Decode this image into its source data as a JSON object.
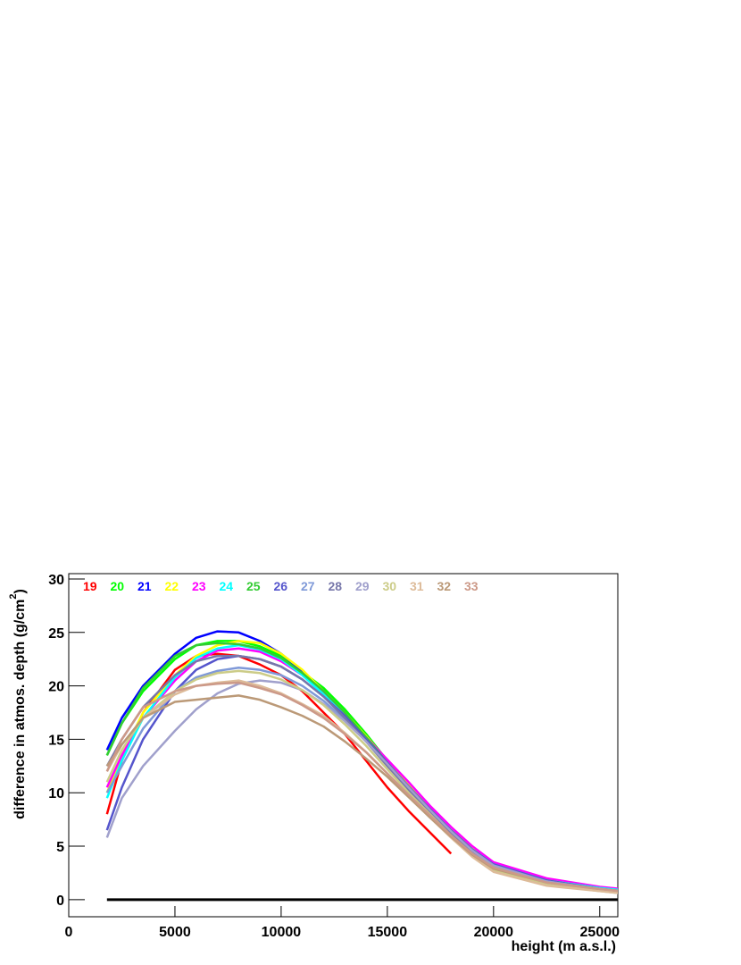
{
  "chart_data": {
    "type": "line",
    "x_label": "height (m a.s.l.)",
    "y_label": {
      "text": "difference in atmos. depth (g/cm",
      "superscript": "2",
      "close": ")"
    },
    "xlim": [
      0,
      25850
    ],
    "ylim": [
      -1.6,
      30.5
    ],
    "xticks": [
      0,
      5000,
      10000,
      15000,
      20000,
      25000
    ],
    "yticks": [
      0,
      5,
      10,
      15,
      20,
      25,
      30
    ],
    "x": [
      1800,
      2500,
      3500,
      5000,
      6000,
      7000,
      8000,
      9000,
      10000,
      11000,
      12000,
      13000,
      14000,
      15000,
      16000,
      17000,
      18000,
      19000,
      20000,
      22500,
      25000,
      26000
    ],
    "baseline": {
      "x": [
        1800,
        25850
      ],
      "values": [
        0,
        0
      ],
      "color": "#000000"
    },
    "series": [
      {
        "name": "19",
        "color": "#ff0000",
        "values": [
          8,
          13,
          17.5,
          21.5,
          22.8,
          23,
          22.8,
          22,
          21,
          19.5,
          17.5,
          15.5,
          13,
          10.5,
          8.3,
          6.3,
          4.3,
          null,
          null,
          null,
          null,
          null
        ]
      },
      {
        "name": "20",
        "color": "#00ff00",
        "values": [
          13.5,
          16.5,
          19.5,
          22.5,
          23.8,
          24.2,
          24.2,
          23.7,
          22.8,
          21.3,
          19.8,
          17.8,
          15.5,
          13,
          10.5,
          8.3,
          6.3,
          4.5,
          3.2,
          1.8,
          1.0,
          0.8
        ]
      },
      {
        "name": "21",
        "color": "#0000ff",
        "values": [
          14,
          17,
          20,
          23,
          24.5,
          25.1,
          25.0,
          24.2,
          23,
          21.4,
          19.5,
          17.3,
          15,
          12.7,
          10.3,
          8.2,
          6.3,
          4.6,
          3.3,
          1.8,
          1.1,
          0.9
        ]
      },
      {
        "name": "22",
        "color": "#ffff00",
        "values": [
          10,
          13.5,
          17.5,
          21,
          22.8,
          23.8,
          24.2,
          24,
          23,
          21.5,
          19.5,
          17.5,
          15.3,
          13,
          10.7,
          8.5,
          6.5,
          4.8,
          3.4,
          1.9,
          1.1,
          0.9
        ]
      },
      {
        "name": "23",
        "color": "#ff00ff",
        "values": [
          10.5,
          13.5,
          17,
          20.5,
          22.3,
          23.3,
          23.5,
          23.2,
          22.3,
          21,
          19.3,
          17.3,
          15.2,
          13.1,
          11,
          8.8,
          6.8,
          5,
          3.5,
          2.0,
          1.2,
          1.0
        ]
      },
      {
        "name": "24",
        "color": "#00ffff",
        "values": [
          9.5,
          13,
          17,
          20.8,
          22.6,
          23.5,
          23.8,
          23.4,
          22.5,
          21,
          19.2,
          17.2,
          15,
          12.8,
          10.5,
          8.4,
          6.4,
          4.7,
          3.3,
          1.8,
          1.1,
          0.9
        ]
      },
      {
        "name": "25",
        "color": "#33cc33",
        "values": [
          13.5,
          16.5,
          19.8,
          22.8,
          23.8,
          24,
          23.9,
          23.5,
          22.6,
          21.2,
          19.5,
          17.5,
          15.2,
          12.8,
          10.5,
          8.3,
          6.4,
          4.6,
          3.2,
          1.8,
          1.0,
          0.8
        ]
      },
      {
        "name": "26",
        "color": "#5555cc",
        "values": [
          6.5,
          10.5,
          15,
          19.5,
          21.5,
          22.5,
          22.8,
          22.5,
          21.8,
          20.6,
          19,
          17.2,
          15,
          12.8,
          10.6,
          8.5,
          6.5,
          4.7,
          3.3,
          1.8,
          1.0,
          0.8
        ]
      },
      {
        "name": "27",
        "color": "#7f99d8",
        "values": [
          10,
          12.5,
          16,
          19.5,
          20.8,
          21.4,
          21.7,
          21.5,
          21,
          20,
          18.6,
          16.8,
          14.8,
          12.6,
          10.4,
          8.3,
          6.3,
          4.5,
          3.1,
          1.7,
          1.0,
          0.8
        ]
      },
      {
        "name": "28",
        "color": "#7777aa",
        "values": [
          12.5,
          15,
          18,
          21,
          22.3,
          22.8,
          22.8,
          22.5,
          21.8,
          20.6,
          19,
          17,
          14.8,
          12.5,
          10.3,
          8.2,
          6.2,
          4.5,
          3.1,
          1.7,
          1.0,
          0.8
        ]
      },
      {
        "name": "29",
        "color": "#a0a0cc",
        "values": [
          5.8,
          9.5,
          12.5,
          15.8,
          17.8,
          19.3,
          20.2,
          20.5,
          20.3,
          19.6,
          18.3,
          16.7,
          14.8,
          12.7,
          10.5,
          8.4,
          6.4,
          4.6,
          3.2,
          1.7,
          1.0,
          0.8
        ]
      },
      {
        "name": "30",
        "color": "#cccc88",
        "values": [
          11,
          14,
          17,
          19.5,
          20.6,
          21.2,
          21.4,
          21.2,
          20.6,
          19.6,
          18.2,
          16.4,
          14.4,
          12.2,
          10,
          8,
          6,
          4.2,
          2.8,
          1.4,
          0.8,
          0.6
        ]
      },
      {
        "name": "31",
        "color": "#ddbb99",
        "values": [
          12,
          14.5,
          17,
          19.2,
          20,
          20.3,
          20.5,
          20,
          19.3,
          18.3,
          17.2,
          15.6,
          13.8,
          11.8,
          9.7,
          7.7,
          5.8,
          4,
          2.6,
          1.3,
          0.8,
          0.6
        ]
      },
      {
        "name": "32",
        "color": "#bb9977",
        "values": [
          12.5,
          14.5,
          17,
          18.5,
          18.7,
          18.9,
          19.1,
          18.7,
          18,
          17.2,
          16.2,
          14.8,
          13.2,
          11.5,
          9.6,
          7.7,
          5.9,
          4.2,
          2.9,
          1.6,
          1.0,
          0.8
        ]
      },
      {
        "name": "33",
        "color": "#cc9988",
        "values": [
          12,
          15,
          18,
          19.5,
          20,
          20.2,
          20.3,
          19.8,
          19.2,
          18.2,
          17,
          15.5,
          13.8,
          11.8,
          9.8,
          7.9,
          6.0,
          4.3,
          3.0,
          1.6,
          1.0,
          0.8
        ]
      }
    ]
  }
}
